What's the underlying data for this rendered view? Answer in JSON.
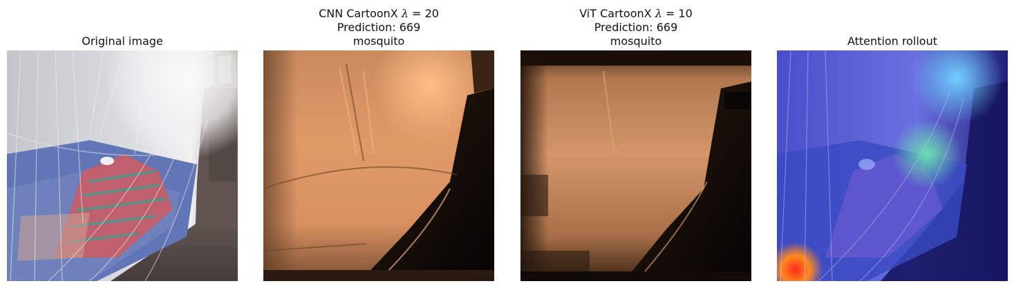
{
  "panels": [
    {
      "id": "original",
      "title_lines": [
        "Original image"
      ],
      "image": "photo of a bed draped with a mosquito net; person under red-striped blanket on a blue mattress, window light at top right"
    },
    {
      "id": "cnn-cartoonx",
      "title_prefix": "CNN CartoonX ",
      "title_lambda_symbol": "λ",
      "title_lambda_value": " = 20",
      "prediction_label": "Prediction: 669",
      "class_name": "mosquito",
      "colormap": "copper"
    },
    {
      "id": "vit-cartoonx",
      "title_prefix": "ViT CartoonX ",
      "title_lambda_symbol": "λ",
      "title_lambda_value": " = 10",
      "prediction_label": "Prediction: 669",
      "class_name": "mosquito",
      "colormap": "copper"
    },
    {
      "id": "attention-rollout",
      "title_lines": [
        "Attention rollout"
      ],
      "colormap": "jet overlay"
    }
  ]
}
